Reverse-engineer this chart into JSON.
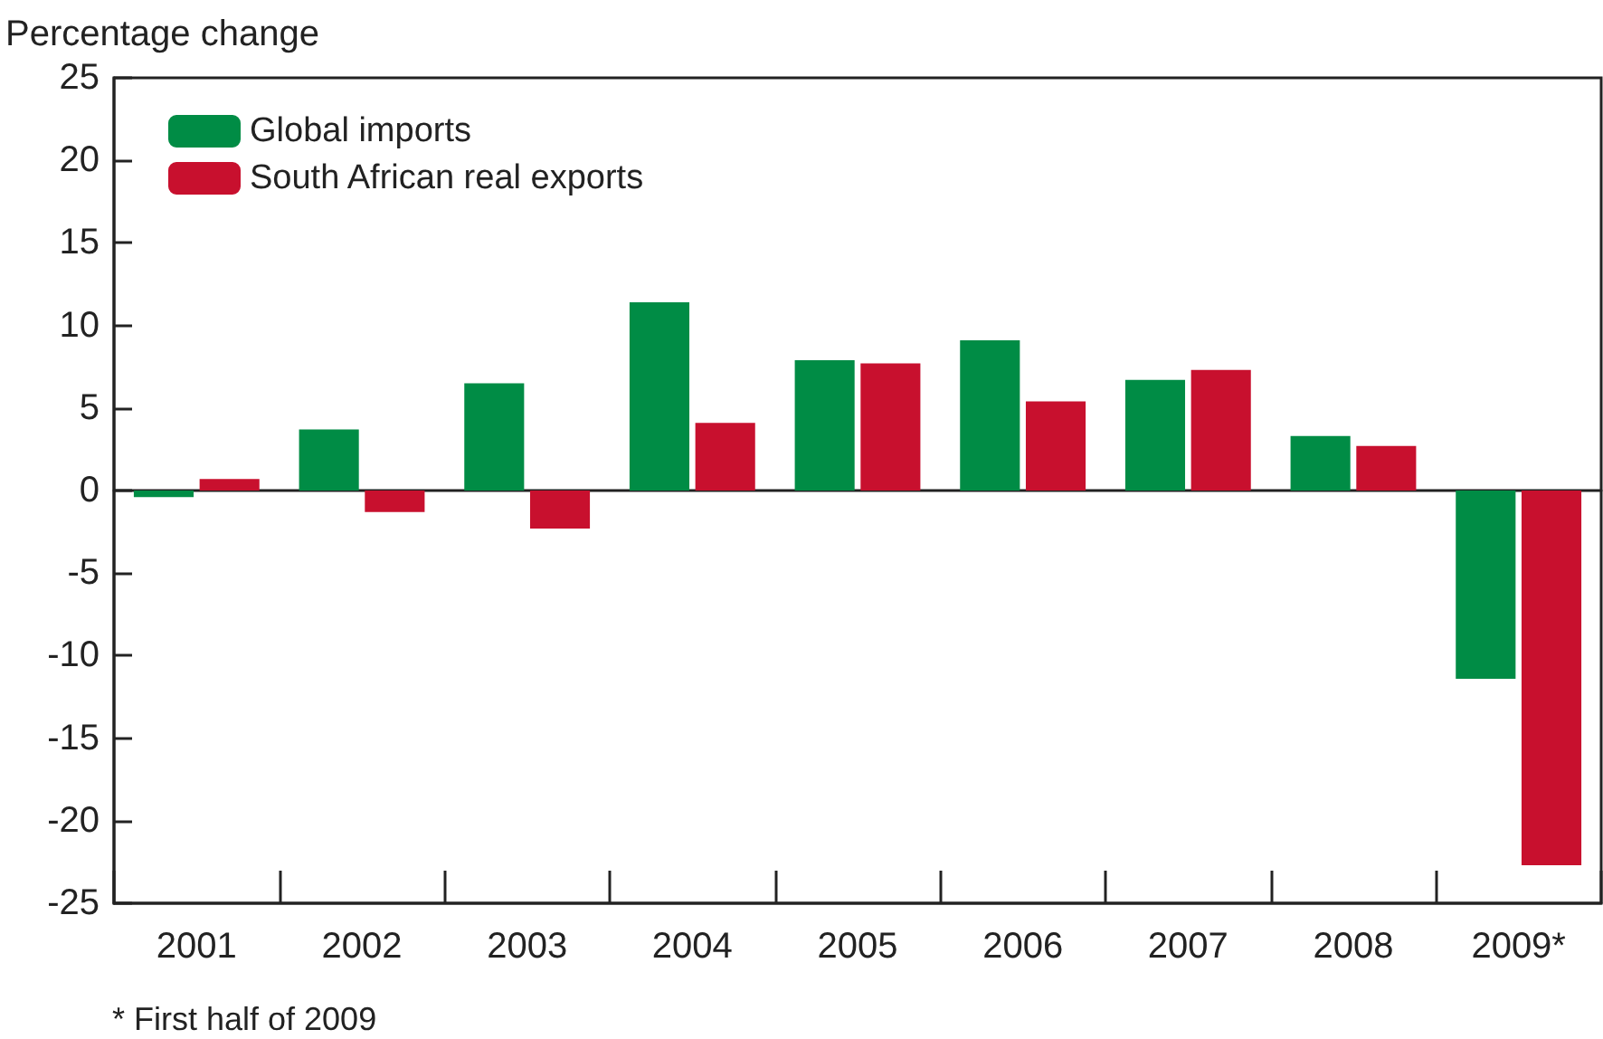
{
  "chart_data": {
    "type": "bar",
    "ylabel": "Percentage change",
    "categories": [
      "2001",
      "2002",
      "2003",
      "2004",
      "2005",
      "2006",
      "2007",
      "2008",
      "2009*"
    ],
    "series": [
      {
        "name": "Global imports",
        "color": "#008c45",
        "values": [
          -0.4,
          3.7,
          6.5,
          11.4,
          7.9,
          9.1,
          6.7,
          3.3,
          -11.4
        ]
      },
      {
        "name": "South African real exports",
        "color": "#c8102e",
        "values": [
          0.7,
          -1.3,
          -2.3,
          4.1,
          7.7,
          5.4,
          7.3,
          2.7,
          -22.7
        ]
      }
    ],
    "ylim": [
      -25,
      25
    ],
    "yticks": [
      -25,
      -20,
      -15,
      -10,
      -5,
      0,
      5,
      10,
      15,
      20,
      25
    ],
    "legend": "top left",
    "annotations": [
      "* First half of 2009"
    ]
  }
}
